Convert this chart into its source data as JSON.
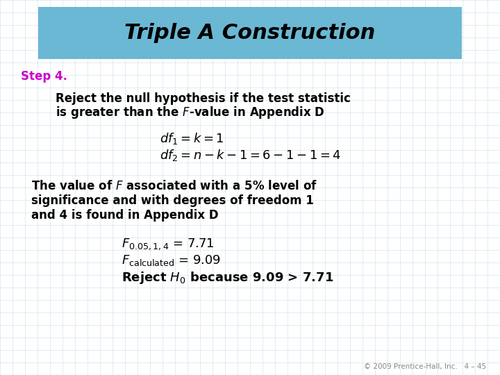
{
  "title": "Triple A Construction",
  "title_color": "#000000",
  "title_bg_color": "#6BB8D4",
  "bg_color": "#FFFFFF",
  "grid_color": "#AACCDD",
  "step_label": "Step 4.",
  "step_color": "#CC00CC",
  "body_color": "#000000",
  "footer_text": "© 2009 Prentice-Hall, Inc.   4 – 45",
  "footer_color": "#888888"
}
